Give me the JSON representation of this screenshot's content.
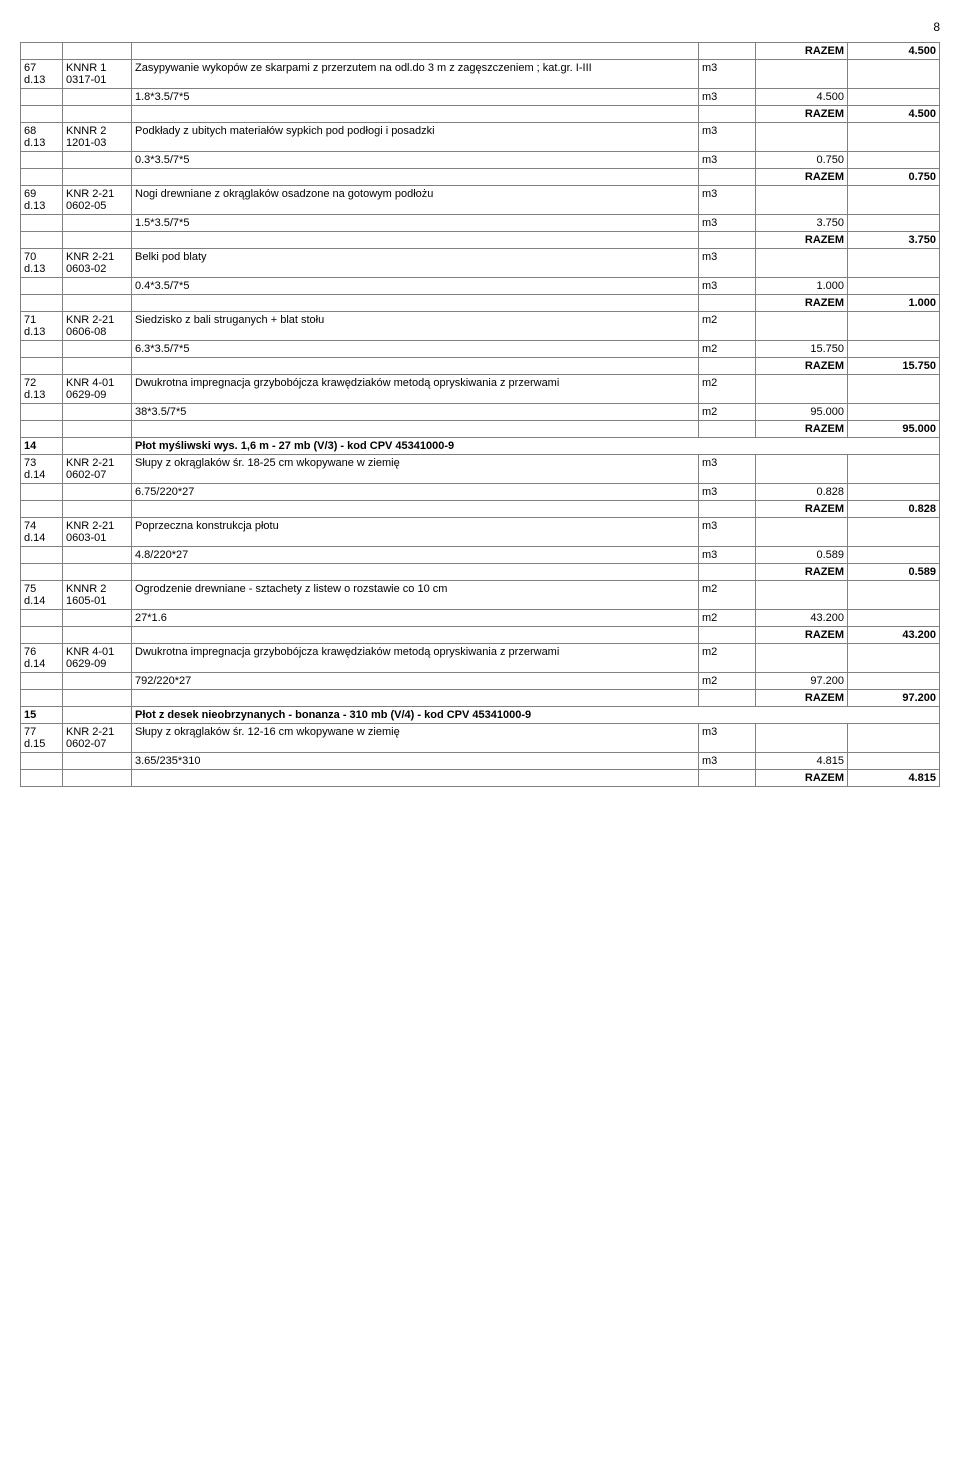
{
  "pageNumber": "8",
  "razemLabel": "RAZEM",
  "rows": [
    {
      "type": "razem",
      "value": "4.500"
    },
    {
      "type": "item",
      "idx": "67\nd.13",
      "ref": "KNNR 1\n0317-01",
      "desc": "Zasypywanie wykopów ze skarpami z przerzutem na odl.do 3 m z zagęszczeniem ; kat.gr. I-III",
      "unit": "m3"
    },
    {
      "type": "calc",
      "expr": "1.8*3.5/7*5",
      "unit": "m3",
      "val": "4.500"
    },
    {
      "type": "razem",
      "value": "4.500"
    },
    {
      "type": "item",
      "idx": "68\nd.13",
      "ref": "KNNR 2\n1201-03",
      "desc": "Podkłady z ubitych materiałów sypkich pod podłogi i posadzki",
      "unit": "m3"
    },
    {
      "type": "calc",
      "expr": "0.3*3.5/7*5",
      "unit": "m3",
      "val": "0.750"
    },
    {
      "type": "razem",
      "value": "0.750"
    },
    {
      "type": "item",
      "idx": "69\nd.13",
      "ref": "KNR 2-21\n0602-05",
      "desc": "Nogi drewniane z okrąglaków osadzone na gotowym podłożu",
      "unit": "m3"
    },
    {
      "type": "calc",
      "expr": "1.5*3.5/7*5",
      "unit": "m3",
      "val": "3.750"
    },
    {
      "type": "razem",
      "value": "3.750"
    },
    {
      "type": "item",
      "idx": "70\nd.13",
      "ref": "KNR 2-21\n0603-02",
      "desc": "Belki pod blaty",
      "unit": "m3"
    },
    {
      "type": "calc",
      "expr": "0.4*3.5/7*5",
      "unit": "m3",
      "val": "1.000"
    },
    {
      "type": "razem",
      "value": "1.000"
    },
    {
      "type": "item",
      "idx": "71\nd.13",
      "ref": "KNR 2-21\n0606-08",
      "desc": "Siedzisko z bali struganych + blat stołu",
      "unit": "m2"
    },
    {
      "type": "calc",
      "expr": "6.3*3.5/7*5",
      "unit": "m2",
      "val": "15.750"
    },
    {
      "type": "razem",
      "value": "15.750"
    },
    {
      "type": "item",
      "idx": "72\nd.13",
      "ref": "KNR 4-01\n0629-09",
      "desc": "Dwukrotna impregnacja grzybobójcza krawędziaków metodą opryskiwania z przerwami",
      "unit": "m2"
    },
    {
      "type": "calc",
      "expr": "38*3.5/7*5",
      "unit": "m2",
      "val": "95.000"
    },
    {
      "type": "razem",
      "value": "95.000"
    },
    {
      "type": "section",
      "num": "14",
      "title": "Płot myśliwski wys. 1,6 m - 27 mb (V/3) - kod CPV 45341000-9"
    },
    {
      "type": "item",
      "idx": "73\nd.14",
      "ref": "KNR 2-21\n0602-07",
      "desc": "Słupy z okrąglaków śr. 18-25 cm wkopywane w ziemię",
      "unit": "m3"
    },
    {
      "type": "calc",
      "expr": "6.75/220*27",
      "unit": "m3",
      "val": "0.828"
    },
    {
      "type": "razem",
      "value": "0.828"
    },
    {
      "type": "item",
      "idx": "74\nd.14",
      "ref": "KNR 2-21\n0603-01",
      "desc": "Poprzeczna konstrukcja płotu",
      "unit": "m3"
    },
    {
      "type": "calc",
      "expr": "4.8/220*27",
      "unit": "m3",
      "val": "0.589"
    },
    {
      "type": "razem",
      "value": "0.589"
    },
    {
      "type": "item",
      "idx": "75\nd.14",
      "ref": "KNNR 2\n1605-01",
      "desc": "Ogrodzenie drewniane - sztachety z listew o rozstawie co 10 cm",
      "unit": "m2"
    },
    {
      "type": "calc",
      "expr": "27*1.6",
      "unit": "m2",
      "val": "43.200"
    },
    {
      "type": "razem",
      "value": "43.200"
    },
    {
      "type": "item",
      "idx": "76\nd.14",
      "ref": "KNR 4-01\n0629-09",
      "desc": "Dwukrotna impregnacja grzybobójcza krawędziaków metodą opryskiwania z przerwami",
      "unit": "m2"
    },
    {
      "type": "calc",
      "expr": "792/220*27",
      "unit": "m2",
      "val": "97.200"
    },
    {
      "type": "razem",
      "value": "97.200"
    },
    {
      "type": "section",
      "num": "15",
      "title": "Płot z desek nieobrzynanych - bonanza - 310 mb (V/4) - kod CPV 45341000-9"
    },
    {
      "type": "item",
      "idx": "77\nd.15",
      "ref": "KNR 2-21\n0602-07",
      "desc": "Słupy z okrąglaków śr. 12-16 cm wkopywane w ziemię",
      "unit": "m3"
    },
    {
      "type": "calc",
      "expr": "3.65/235*310",
      "unit": "m3",
      "val": "4.815"
    },
    {
      "type": "razem",
      "value": "4.815"
    }
  ]
}
